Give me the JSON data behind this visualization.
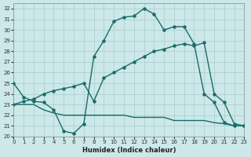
{
  "xlabel": "Humidex (Indice chaleur)",
  "background_color": "#cce8e8",
  "grid_color": "#aacccc",
  "line_color": "#1a6b6b",
  "xlim": [
    0,
    23
  ],
  "ylim": [
    20,
    32.5
  ],
  "xticks": [
    0,
    1,
    2,
    3,
    4,
    5,
    6,
    7,
    8,
    9,
    10,
    11,
    12,
    13,
    14,
    15,
    16,
    17,
    18,
    19,
    20,
    21,
    22,
    23
  ],
  "yticks": [
    20,
    21,
    22,
    23,
    24,
    25,
    26,
    27,
    28,
    29,
    30,
    31,
    32
  ],
  "line1_x": [
    0,
    1,
    2,
    3,
    4,
    5,
    6,
    7,
    8,
    9,
    10,
    11,
    12,
    13,
    14,
    15,
    16,
    17,
    18,
    19,
    20,
    21,
    22,
    23
  ],
  "line1_y": [
    25,
    23.7,
    23.3,
    23.2,
    22.5,
    20.5,
    20.3,
    21.2,
    27.5,
    29.0,
    30.8,
    31.2,
    31.3,
    32.0,
    31.5,
    30.0,
    30.3,
    30.3,
    28.7,
    24.0,
    23.2,
    21.3,
    21.0,
    21.0
  ],
  "line2_x": [
    0,
    1,
    2,
    3,
    4,
    5,
    6,
    7,
    8,
    9,
    10,
    11,
    12,
    13,
    14,
    15,
    16,
    17,
    18,
    19,
    20,
    21,
    22,
    23
  ],
  "line2_y": [
    23,
    23.3,
    23.5,
    24.0,
    24.3,
    24.5,
    24.7,
    25.0,
    23.3,
    25.5,
    26.0,
    26.5,
    27.0,
    27.5,
    28.0,
    28.2,
    28.5,
    28.7,
    28.5,
    28.8,
    24.0,
    23.2,
    21.2,
    21.0
  ],
  "line3_x": [
    0,
    1,
    2,
    3,
    4,
    5,
    6,
    7,
    8,
    9,
    10,
    11,
    12,
    13,
    14,
    15,
    16,
    17,
    18,
    19,
    20,
    21,
    22,
    23
  ],
  "line3_y": [
    23,
    23.0,
    23.0,
    22.5,
    22.2,
    22.0,
    22.0,
    22.0,
    22.0,
    22.0,
    22.0,
    22.0,
    21.8,
    21.8,
    21.8,
    21.8,
    21.5,
    21.5,
    21.5,
    21.5,
    21.3,
    21.2,
    21.0,
    21.0
  ]
}
